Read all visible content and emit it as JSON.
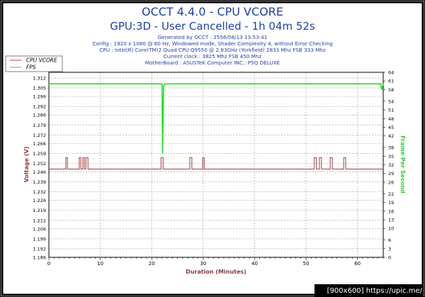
{
  "header": {
    "title": "OCCT 4.4.0 - CPU VCORE",
    "subtitle": "GPU:3D - User Cancelled - 1h 04m 52s",
    "info_lines": [
      "Generated by OCCT : 2556/08/13 13:53:41",
      "Config : 1920 x 1080 @ 60 Hz, Windowed mode, Shader Complexity 4, without Error Checking",
      "CPU : Intel(R) Core(TM)2 Quad CPU Q9550 @ 2.83GHz (Yorkfield) 2833 Mhz FSB 333 Mhz",
      "Current clock : 3825 Mhz FSB 450 Mhz",
      "MotherBoard : ASUSTeK Computer INC.: P5Q DELUXE"
    ]
  },
  "watermark": "[900x600] https://upic.me/",
  "colors": {
    "title": "#1f3fa8",
    "info": "#1f3fa8",
    "vcore": "#a04040",
    "fps": "#22dd22",
    "grid": "#9a9a9a",
    "axis_left": "#8b3a3a",
    "axis_right": "#33cc33",
    "watermark_bg": "#000000",
    "watermark_fg": "#ffffff"
  },
  "chart_data": {
    "type": "line",
    "xlabel": "Duration (Minutes)",
    "ylabel": "Voltage (V)",
    "y2label": "Frame Per Second",
    "xlim": [
      0,
      65
    ],
    "ylim": [
      1.186,
      1.316
    ],
    "y2lim": [
      0,
      64
    ],
    "x_ticks": [
      "0",
      "10",
      "20",
      "30",
      "40",
      "50",
      "60"
    ],
    "x_tick_values": [
      0,
      10,
      20,
      30,
      40,
      50,
      60
    ],
    "y_ticks": [
      "1.312",
      "1.305",
      "1.299",
      "1.292",
      "1.286",
      "1.279",
      "1.272",
      "1.266",
      "1.259",
      "1.252",
      "1.246",
      "1.239",
      "1.232",
      "1.226",
      "1.219",
      "1.212",
      "1.206",
      "1.199",
      "1.192",
      "1.186"
    ],
    "y_tick_values": [
      1.312,
      1.305,
      1.299,
      1.292,
      1.286,
      1.279,
      1.272,
      1.266,
      1.259,
      1.252,
      1.246,
      1.239,
      1.232,
      1.226,
      1.219,
      1.212,
      1.206,
      1.199,
      1.192,
      1.186
    ],
    "y2_ticks": [
      "64",
      "61",
      "58",
      "54",
      "51",
      "48",
      "45",
      "42",
      "38",
      "35",
      "32",
      "29",
      "26",
      "22",
      "19",
      "16",
      "13",
      "10",
      "6",
      "3",
      "0"
    ],
    "y2_tick_values": [
      64,
      61,
      58,
      54,
      51,
      48,
      45,
      42,
      38,
      35,
      32,
      29,
      26,
      22,
      19,
      16,
      13,
      10,
      6,
      3,
      0
    ],
    "grid": true,
    "legend_position": "top-left",
    "series": [
      {
        "name": "CPU VCORE",
        "axis": "left",
        "base": 1.248,
        "spike": 1.256,
        "spike_ranges": [
          [
            3.3,
            3.6
          ],
          [
            5.9,
            6.2
          ],
          [
            6.6,
            6.9
          ],
          [
            7.2,
            7.6
          ],
          [
            21.8,
            22.2
          ],
          [
            27.4,
            27.8
          ],
          [
            29.9,
            30.2
          ],
          [
            51.6,
            52.0
          ],
          [
            52.6,
            53.0
          ],
          [
            54.7,
            55.1
          ],
          [
            57.3,
            57.7
          ]
        ]
      },
      {
        "name": "FPS",
        "axis": "right",
        "x": [
          0,
          21.9,
          22.0,
          22.1,
          22.3,
          22.5,
          64.5,
          64.7,
          65
        ],
        "y": [
          60,
          60,
          60,
          36,
          59,
          60,
          60,
          58,
          60
        ]
      }
    ]
  }
}
